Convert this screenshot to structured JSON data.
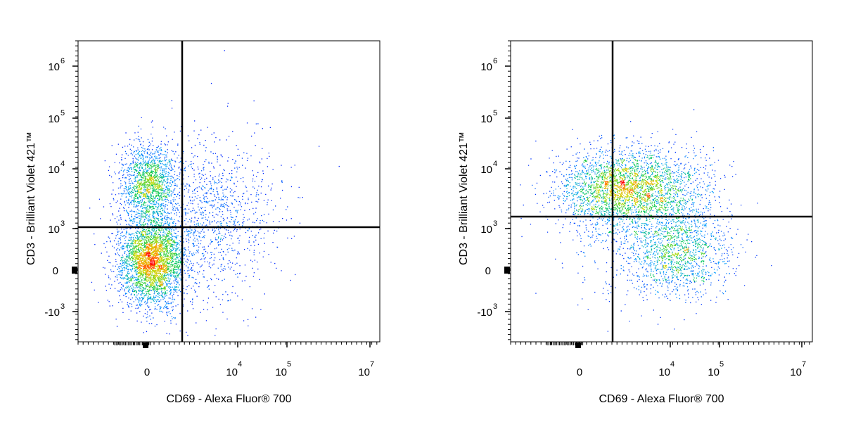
{
  "chart_data": [
    {
      "type": "scatter",
      "xlabel": "CD69 - Alexa Fluor® 700",
      "ylabel": "CD3 - Brilliant Violet 421™",
      "x_scale": "biexponential",
      "y_scale": "biexponential",
      "xlim_label": [
        "0",
        "10^7"
      ],
      "ylim_label": [
        "-10^3",
        "10^6"
      ],
      "x_ticks": [
        {
          "base": "0",
          "exp": ""
        },
        {
          "base": "10",
          "exp": "4"
        },
        {
          "base": "10",
          "exp": "5"
        },
        {
          "base": "10",
          "exp": "7"
        }
      ],
      "y_ticks": [
        {
          "base": "10",
          "exp": "6"
        },
        {
          "base": "10",
          "exp": "5"
        },
        {
          "base": "10",
          "exp": "4"
        },
        {
          "base": "10",
          "exp": "3"
        },
        {
          "base": "0",
          "exp": ""
        },
        {
          "base": "-10",
          "exp": "3"
        }
      ],
      "gate": {
        "x": "~10^3",
        "y": "~10^3"
      },
      "populations": [
        {
          "name": "",
          "x_center": "~0",
          "y_center": "~0",
          "density": "high"
        },
        {
          "name": "",
          "x_center": "~0",
          "y_center": "~10^3.7",
          "density": "medium"
        },
        {
          "name": "",
          "x_center": "~10^3.5",
          "y_center": "~10^3",
          "density": "low"
        }
      ],
      "grid": false,
      "colormap": "density (blue-green-yellow-red)"
    },
    {
      "type": "scatter",
      "xlabel": "CD69 - Alexa Fluor® 700",
      "ylabel": "CD3 - Brilliant Violet 421™",
      "x_scale": "biexponential",
      "y_scale": "biexponential",
      "xlim_label": [
        "0",
        "10^7"
      ],
      "ylim_label": [
        "-10^3",
        "10^6"
      ],
      "x_ticks": [
        {
          "base": "0",
          "exp": ""
        },
        {
          "base": "10",
          "exp": "4"
        },
        {
          "base": "10",
          "exp": "5"
        },
        {
          "base": "10",
          "exp": "7"
        }
      ],
      "y_ticks": [
        {
          "base": "10",
          "exp": "6"
        },
        {
          "base": "10",
          "exp": "5"
        },
        {
          "base": "10",
          "exp": "4"
        },
        {
          "base": "10",
          "exp": "3"
        },
        {
          "base": "0",
          "exp": ""
        },
        {
          "base": "-10",
          "exp": "3"
        }
      ],
      "gate": {
        "x": "~10^3",
        "y": "~10^3.2"
      },
      "populations": [
        {
          "name": "",
          "x_center": "~10^3",
          "y_center": "~10^3.7",
          "density": "high"
        },
        {
          "name": "",
          "x_center": "~10^4",
          "y_center": "~10^2.8",
          "density": "medium"
        }
      ],
      "grid": false,
      "colormap": "density (blue-green-yellow-red)"
    }
  ]
}
